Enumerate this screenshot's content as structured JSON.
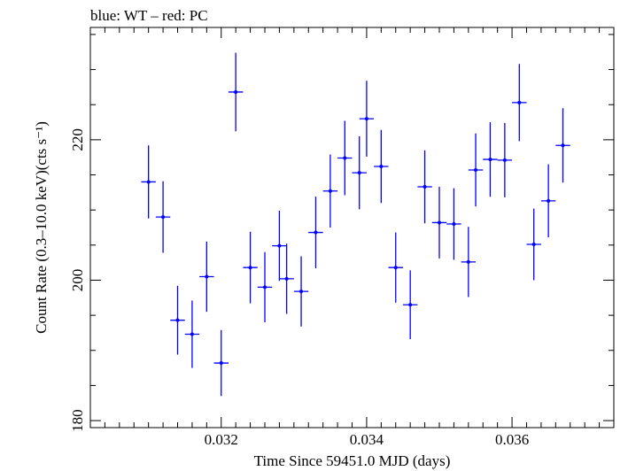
{
  "chart_data": {
    "type": "scatter",
    "title": "blue: WT – red: PC",
    "xlabel": "Time Since 59451.0 MJD (days)",
    "ylabel": "Count Rate (0.3–10.0 keV)(cts s⁻¹)",
    "xlim": [
      0.0302,
      0.0374
    ],
    "ylim": [
      179,
      236
    ],
    "x_ticks": [
      0.032,
      0.034,
      0.036
    ],
    "x_tick_labels": [
      "0.032",
      "0.034",
      "0.036"
    ],
    "y_ticks": [
      180,
      200,
      220
    ],
    "y_tick_labels": [
      "180",
      "200",
      "220"
    ],
    "grid": false,
    "series": [
      {
        "color": "#0000ff",
        "x_halfwidth": 0.0001,
        "points": [
          {
            "x": 0.031,
            "y": 214.0,
            "yerr": 5.2
          },
          {
            "x": 0.0312,
            "y": 209.0,
            "yerr": 5.1
          },
          {
            "x": 0.0314,
            "y": 194.3,
            "yerr": 4.9
          },
          {
            "x": 0.0316,
            "y": 192.3,
            "yerr": 4.8
          },
          {
            "x": 0.0318,
            "y": 200.5,
            "yerr": 5.0
          },
          {
            "x": 0.032,
            "y": 188.2,
            "yerr": 4.7
          },
          {
            "x": 0.0322,
            "y": 226.8,
            "yerr": 5.6
          },
          {
            "x": 0.0324,
            "y": 201.8,
            "yerr": 5.1
          },
          {
            "x": 0.0326,
            "y": 199.0,
            "yerr": 5.0
          },
          {
            "x": 0.0328,
            "y": 204.9,
            "yerr": 5.0
          },
          {
            "x": 0.0329,
            "y": 200.2,
            "yerr": 5.0
          },
          {
            "x": 0.0331,
            "y": 198.4,
            "yerr": 5.0
          },
          {
            "x": 0.0333,
            "y": 206.8,
            "yerr": 5.1
          },
          {
            "x": 0.0335,
            "y": 212.7,
            "yerr": 5.2
          },
          {
            "x": 0.0337,
            "y": 217.4,
            "yerr": 5.3
          },
          {
            "x": 0.0339,
            "y": 215.3,
            "yerr": 5.2
          },
          {
            "x": 0.034,
            "y": 223.0,
            "yerr": 5.4
          },
          {
            "x": 0.0342,
            "y": 216.2,
            "yerr": 5.2
          },
          {
            "x": 0.0344,
            "y": 201.8,
            "yerr": 5.0
          },
          {
            "x": 0.0346,
            "y": 196.5,
            "yerr": 4.9
          },
          {
            "x": 0.0348,
            "y": 213.3,
            "yerr": 5.2
          },
          {
            "x": 0.035,
            "y": 208.2,
            "yerr": 5.1
          },
          {
            "x": 0.0352,
            "y": 208.0,
            "yerr": 5.1
          },
          {
            "x": 0.0354,
            "y": 202.6,
            "yerr": 5.0
          },
          {
            "x": 0.0355,
            "y": 215.7,
            "yerr": 5.2
          },
          {
            "x": 0.0357,
            "y": 217.2,
            "yerr": 5.3
          },
          {
            "x": 0.0359,
            "y": 217.1,
            "yerr": 5.3
          },
          {
            "x": 0.0361,
            "y": 225.3,
            "yerr": 5.5
          },
          {
            "x": 0.0363,
            "y": 205.1,
            "yerr": 5.1
          },
          {
            "x": 0.0365,
            "y": 211.3,
            "yerr": 5.2
          },
          {
            "x": 0.0367,
            "y": 219.2,
            "yerr": 5.3
          }
        ]
      }
    ]
  }
}
